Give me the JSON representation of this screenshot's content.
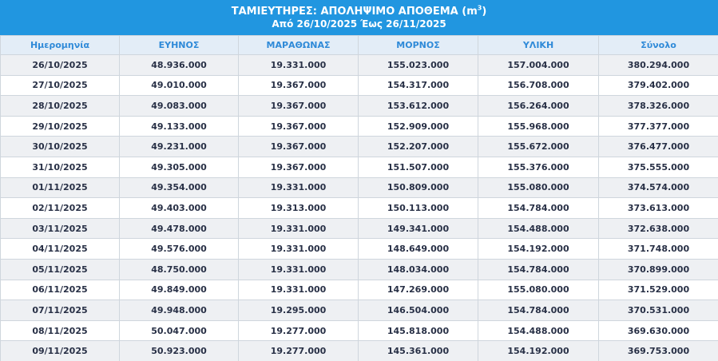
{
  "header": {
    "title_text": "ΤΑΜΙΕΥΤΗΡΕΣ: ΑΠΟΛΗΨΙΜΟ ΑΠΟΘΕΜΑ (m",
    "title_superscript": "3",
    "title_close": ")",
    "subtitle": "Από 26/10/2025 Έως 26/11/2025",
    "background_color": "#2196e0"
  },
  "table": {
    "columns": [
      "Ημερομηνία",
      "ΕΥΗΝΟΣ",
      "ΜΑΡΑΘΩΝΑΣ",
      "ΜΟΡΝΟΣ",
      "ΥΛΙΚΗ",
      "Σύνολο"
    ],
    "rows": [
      [
        "26/10/2025",
        "48.936.000",
        "19.331.000",
        "155.023.000",
        "157.004.000",
        "380.294.000"
      ],
      [
        "27/10/2025",
        "49.010.000",
        "19.367.000",
        "154.317.000",
        "156.708.000",
        "379.402.000"
      ],
      [
        "28/10/2025",
        "49.083.000",
        "19.367.000",
        "153.612.000",
        "156.264.000",
        "378.326.000"
      ],
      [
        "29/10/2025",
        "49.133.000",
        "19.367.000",
        "152.909.000",
        "155.968.000",
        "377.377.000"
      ],
      [
        "30/10/2025",
        "49.231.000",
        "19.367.000",
        "152.207.000",
        "155.672.000",
        "376.477.000"
      ],
      [
        "31/10/2025",
        "49.305.000",
        "19.367.000",
        "151.507.000",
        "155.376.000",
        "375.555.000"
      ],
      [
        "01/11/2025",
        "49.354.000",
        "19.331.000",
        "150.809.000",
        "155.080.000",
        "374.574.000"
      ],
      [
        "02/11/2025",
        "49.403.000",
        "19.313.000",
        "150.113.000",
        "154.784.000",
        "373.613.000"
      ],
      [
        "03/11/2025",
        "49.478.000",
        "19.331.000",
        "149.341.000",
        "154.488.000",
        "372.638.000"
      ],
      [
        "04/11/2025",
        "49.576.000",
        "19.331.000",
        "148.649.000",
        "154.192.000",
        "371.748.000"
      ],
      [
        "05/11/2025",
        "48.750.000",
        "19.331.000",
        "148.034.000",
        "154.784.000",
        "370.899.000"
      ],
      [
        "06/11/2025",
        "49.849.000",
        "19.331.000",
        "147.269.000",
        "155.080.000",
        "371.529.000"
      ],
      [
        "07/11/2025",
        "49.948.000",
        "19.295.000",
        "146.504.000",
        "154.784.000",
        "370.531.000"
      ],
      [
        "08/11/2025",
        "50.047.000",
        "19.277.000",
        "145.818.000",
        "154.488.000",
        "369.630.000"
      ],
      [
        "09/11/2025",
        "50.923.000",
        "19.277.000",
        "145.361.000",
        "154.192.000",
        "369.753.000"
      ]
    ]
  }
}
